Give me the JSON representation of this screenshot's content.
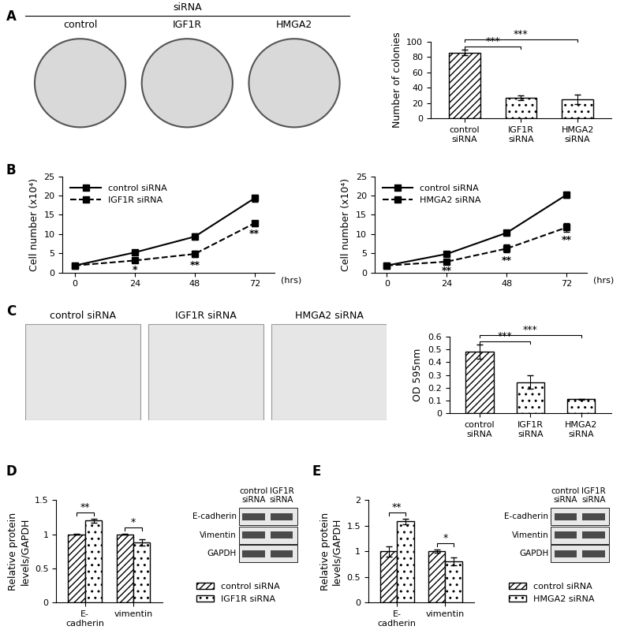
{
  "panel_labels": [
    "A",
    "B",
    "C",
    "D",
    "E"
  ],
  "colony_images": {
    "header": "siRNA",
    "labels": [
      "control",
      "IGF1R",
      "HMGA2"
    ]
  },
  "migration_images": {
    "labels": [
      "control siRNA",
      "IGF1R siRNA",
      "HMGA2 siRNA"
    ]
  },
  "blots": [
    {
      "columns": [
        "control siRNA",
        "IGF1R siRNA"
      ],
      "rows": [
        "E-cadherin",
        "Vimentin",
        "GAPDH"
      ]
    },
    {
      "columns": [
        "control siRNA",
        "IGF1R siRNA"
      ],
      "rows": [
        "E-cadherin",
        "Vimentin",
        "GAPDH"
      ]
    }
  ],
  "chart_data": [
    {
      "type": "bar",
      "ylabel": "Number of colonies",
      "categories": [
        "control siRNA",
        "IGF1R siRNA",
        "HMGA2 siRNA"
      ],
      "values": [
        86,
        27,
        25
      ],
      "errors": [
        4,
        3,
        6
      ],
      "ylim": [
        0,
        100
      ],
      "yticks": [
        0,
        20,
        40,
        60,
        80,
        100
      ],
      "significance": [
        "***",
        "***"
      ]
    },
    {
      "type": "line",
      "x": [
        0,
        24,
        48,
        72
      ],
      "xlim": [
        -5,
        80
      ],
      "xticks": [
        0,
        24,
        48,
        72
      ],
      "xlabel": "(hrs)",
      "ylabel": "Cell number (x10⁴)",
      "ylim": [
        0,
        25
      ],
      "yticks": [
        0,
        5,
        10,
        15,
        20,
        25
      ],
      "legend": "upper left",
      "series": [
        {
          "name": "control siRNA",
          "color": "#000000",
          "marker": "square",
          "line_style": "solid",
          "values": [
            1.8,
            5.2,
            9.3,
            19.3
          ],
          "errors": [
            0.3,
            0.5,
            0.8,
            1.0
          ]
        },
        {
          "name": "IGF1R siRNA",
          "color": "#000000",
          "marker": "square",
          "line_style": "dashed",
          "values": [
            1.8,
            3.1,
            4.8,
            12.8
          ],
          "errors": [
            0.2,
            0.3,
            0.8,
            0.7
          ],
          "significance": [
            null,
            "*",
            "**",
            "**"
          ]
        }
      ]
    },
    {
      "type": "line",
      "x": [
        0,
        24,
        48,
        72
      ],
      "xlim": [
        -5,
        80
      ],
      "xticks": [
        0,
        24,
        48,
        72
      ],
      "xlabel": "(hrs)",
      "ylabel": "Cell number (x10⁴)",
      "ylim": [
        0,
        25
      ],
      "yticks": [
        0,
        5,
        10,
        15,
        20,
        25
      ],
      "legend": "upper left",
      "series": [
        {
          "name": "control siRNA",
          "color": "#000000",
          "marker": "square",
          "line_style": "solid",
          "values": [
            1.8,
            4.8,
            10.3,
            20.2
          ],
          "errors": [
            0.3,
            0.4,
            0.7,
            0.9
          ]
        },
        {
          "name": "HMGA2 siRNA",
          "color": "#000000",
          "marker": "square",
          "line_style": "dashed",
          "values": [
            1.8,
            2.8,
            6.2,
            11.7
          ],
          "errors": [
            0.2,
            0.3,
            1.0,
            1.2
          ],
          "significance": [
            null,
            "**",
            "**",
            "**"
          ]
        }
      ]
    },
    {
      "type": "bar",
      "ylabel": "OD 595nm",
      "categories": [
        "control siRNA",
        "IGF1R siRNA",
        "HMGA2 siRNA"
      ],
      "values": [
        0.48,
        0.245,
        0.11
      ],
      "errors": [
        0.055,
        0.055,
        0.005
      ],
      "ylim": [
        0,
        0.6
      ],
      "yticks": [
        0,
        0.1,
        0.2,
        0.3,
        0.4,
        0.5,
        0.6
      ],
      "significance": [
        "***",
        "***"
      ]
    },
    {
      "type": "bar",
      "ylabel": "Relative protein levels/GAPDH",
      "categories": [
        "E-cadherin",
        "vimentin"
      ],
      "ylim": [
        0,
        1.5
      ],
      "yticks": [
        0,
        0.5,
        1,
        1.5
      ],
      "legend": "lower left",
      "series": [
        {
          "name": "control siRNA",
          "values": [
            1,
            1
          ],
          "errors": [
            0.005,
            0.01
          ]
        },
        {
          "name": "IGF1R siRNA",
          "values": [
            1.2,
            0.88
          ],
          "errors": [
            0.03,
            0.05
          ]
        }
      ],
      "significance": [
        "**",
        "*"
      ]
    },
    {
      "type": "bar",
      "ylabel": "Relative protein levels/GAPDH",
      "categories": [
        "E-cadherin",
        "vimentin"
      ],
      "ylim": [
        0,
        2
      ],
      "yticks": [
        0,
        0.5,
        1,
        1.5,
        2
      ],
      "legend": "lower left",
      "series": [
        {
          "name": "control siRNA",
          "values": [
            1,
            1
          ],
          "errors": [
            0.1,
            0.03
          ]
        },
        {
          "name": "HMGA2 siRNA",
          "values": [
            1.58,
            0.8
          ],
          "errors": [
            0.05,
            0.08
          ]
        }
      ],
      "significance": [
        "**",
        "*"
      ]
    }
  ]
}
